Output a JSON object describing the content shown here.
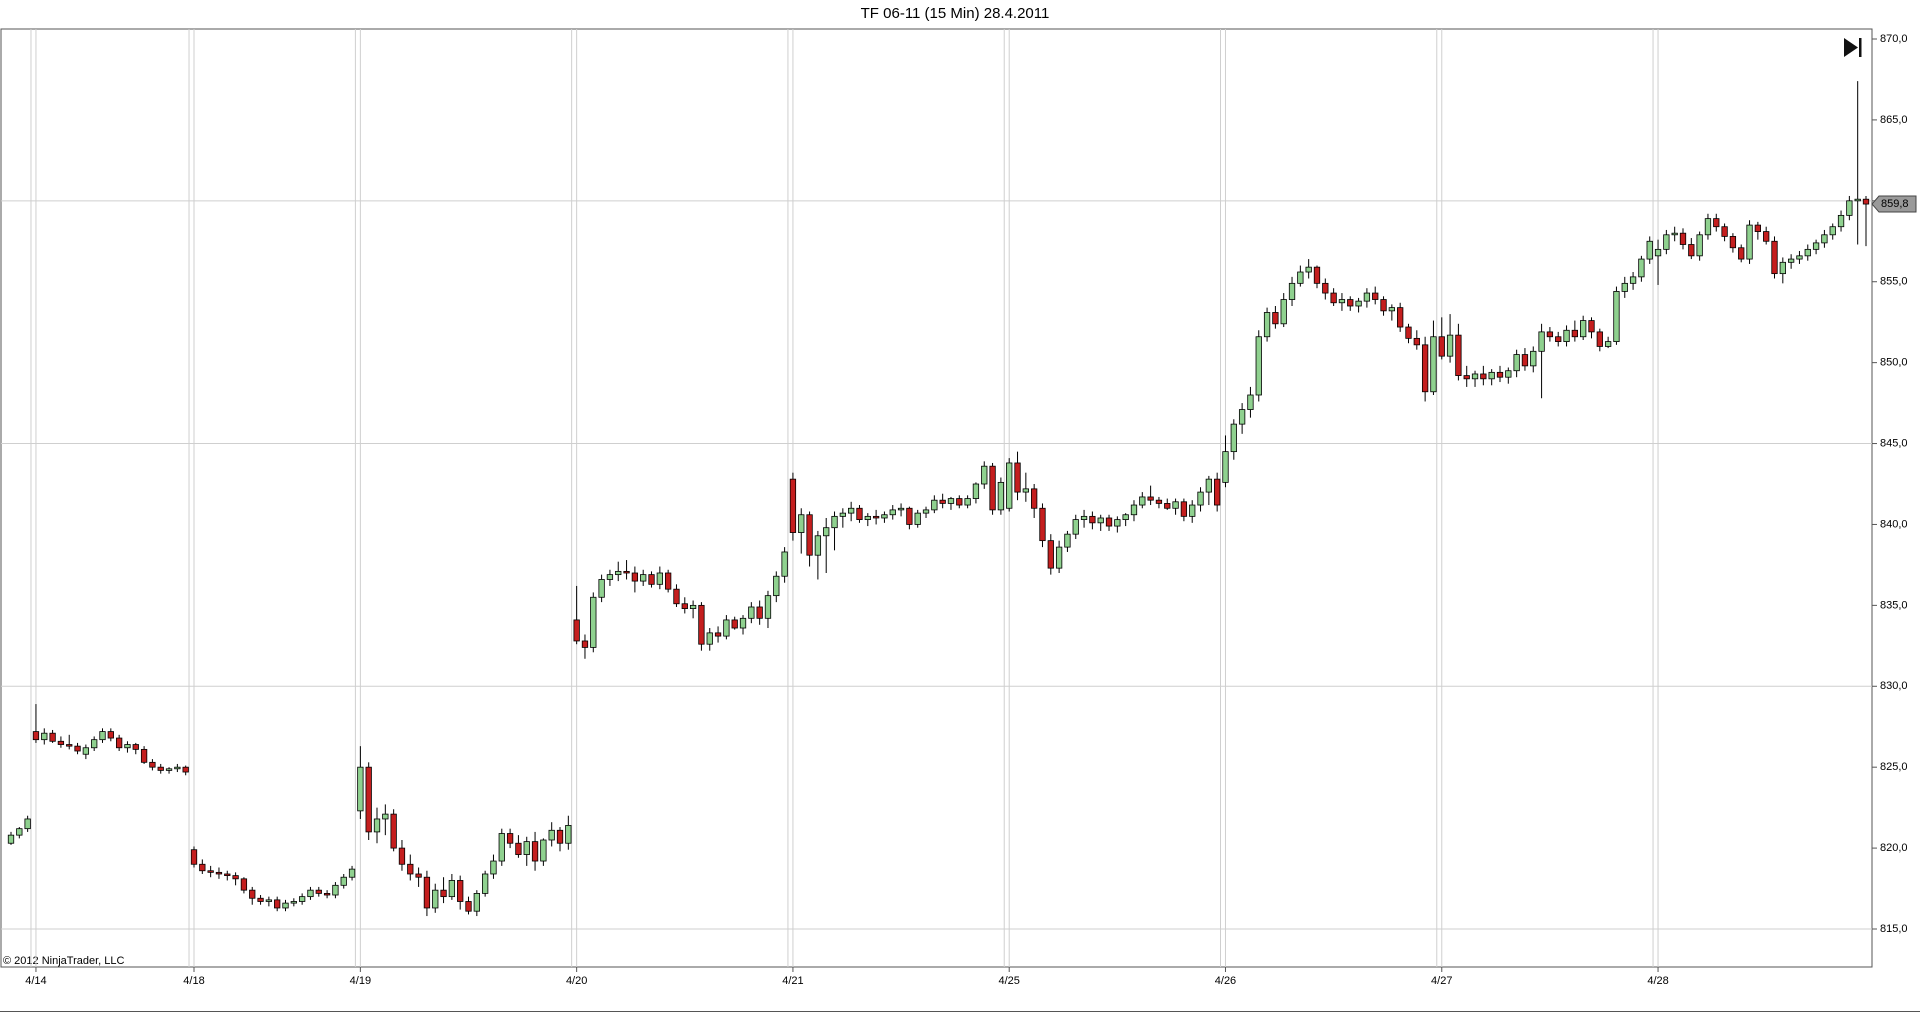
{
  "chart_data": {
    "type": "candlestick",
    "title": "TF 06-11 (15 Min)  28.4.2011",
    "copyright": "© 2012 NinjaTrader, LLC",
    "up_color": "#8fd18f",
    "down_color": "#c41e1e",
    "categories": [
      null,
      null,
      null,
      "4/14",
      null,
      null,
      null,
      null,
      null,
      null,
      null,
      null,
      null,
      null,
      null,
      null,
      null,
      null,
      null,
      null,
      null,
      null,
      "4/18",
      null,
      null,
      null,
      null,
      null,
      null,
      null,
      null,
      null,
      null,
      null,
      null,
      null,
      null,
      null,
      null,
      null,
      null,
      null,
      "4/19",
      null,
      null,
      null,
      null,
      null,
      null,
      null,
      null,
      null,
      null,
      null,
      null,
      null,
      null,
      null,
      null,
      null,
      null,
      null,
      null,
      null,
      null,
      null,
      null,
      null,
      "4/20",
      null,
      null,
      null,
      null,
      null,
      null,
      null,
      null,
      null,
      null,
      null,
      null,
      null,
      null,
      null,
      null,
      null,
      null,
      null,
      null,
      null,
      null,
      null,
      null,
      null,
      "4/21",
      null,
      null,
      null,
      null,
      null,
      null,
      null,
      null,
      null,
      null,
      null,
      null,
      null,
      null,
      null,
      null,
      null,
      null,
      null,
      null,
      null,
      null,
      null,
      null,
      null,
      "4/25",
      null,
      null,
      null,
      null,
      null,
      null,
      null,
      null,
      null,
      null,
      null,
      null,
      null,
      null,
      null,
      null,
      null,
      null,
      null,
      null,
      null,
      null,
      null,
      null,
      null,
      "4/26",
      null,
      null,
      null,
      null,
      null,
      null,
      null,
      null,
      null,
      null,
      null,
      null,
      null,
      null,
      null,
      null,
      null,
      null,
      null,
      null,
      null,
      null,
      null,
      null,
      null,
      "4/27",
      null,
      null,
      null,
      null,
      null,
      null,
      null,
      null,
      null,
      null,
      null,
      null,
      null,
      null,
      null,
      null,
      null,
      null,
      null,
      null,
      null,
      null,
      null,
      null,
      null,
      "4/28",
      null,
      null,
      null,
      null,
      null,
      null,
      null,
      null,
      null,
      null,
      null,
      null,
      null,
      null,
      null,
      null,
      null,
      null,
      null,
      null,
      null,
      null,
      null,
      null,
      null
    ],
    "open": [
      820.3,
      820.8,
      821.2,
      827.2,
      826.7,
      827.1,
      826.6,
      826.4,
      826.3,
      825.8,
      826.2,
      826.7,
      827.2,
      826.8,
      826.2,
      826.4,
      826.1,
      825.3,
      825.0,
      824.8,
      824.9,
      825.0,
      819.9,
      819.0,
      818.6,
      818.5,
      818.4,
      818.3,
      818.1,
      817.4,
      816.9,
      816.7,
      816.8,
      816.3,
      816.6,
      816.7,
      817.0,
      817.4,
      817.2,
      817.1,
      817.7,
      818.2,
      822.3,
      825.0,
      821.0,
      821.8,
      822.1,
      820.0,
      819.0,
      818.4,
      818.2,
      816.3,
      817.4,
      817.0,
      818.0,
      816.7,
      816.1,
      817.2,
      818.4,
      819.2,
      820.9,
      820.3,
      819.6,
      820.4,
      819.2,
      820.5,
      821.1,
      820.3,
      834.1,
      832.8,
      832.4,
      835.5,
      836.6,
      836.9,
      837.1,
      837.0,
      836.5,
      836.9,
      836.3,
      837.0,
      836.0,
      835.1,
      834.8,
      835.0,
      832.6,
      833.3,
      833.1,
      834.1,
      833.6,
      834.2,
      834.9,
      834.2,
      835.6,
      836.8,
      842.8,
      839.5,
      840.6,
      838.1,
      839.3,
      839.8,
      840.5,
      840.7,
      841.0,
      840.3,
      840.5,
      840.4,
      840.6,
      840.9,
      841.0,
      840.0,
      840.7,
      840.9,
      841.5,
      841.3,
      841.6,
      841.2,
      841.6,
      842.5,
      843.6,
      840.9,
      841.0,
      843.8,
      842.0,
      842.2,
      841.0,
      839.0,
      837.3,
      838.6,
      839.4,
      840.3,
      840.5,
      840.1,
      840.4,
      839.9,
      840.3,
      840.6,
      841.2,
      841.7,
      841.5,
      841.3,
      841.0,
      841.4,
      840.5,
      841.2,
      842.0,
      842.8,
      842.6,
      844.5,
      846.2,
      847.1,
      848.0,
      851.6,
      853.1,
      852.4,
      853.9,
      854.9,
      855.6,
      855.9,
      854.9,
      854.3,
      853.7,
      853.9,
      853.5,
      853.8,
      854.3,
      853.9,
      853.2,
      853.4,
      852.2,
      851.5,
      851.1,
      848.2,
      851.6,
      850.4,
      851.7,
      849.2,
      849.0,
      849.3,
      849.0,
      849.4,
      849.1,
      849.5,
      850.5,
      849.8,
      850.7,
      851.9,
      851.6,
      851.3,
      852.0,
      851.6,
      852.6,
      851.9,
      851.0,
      851.3,
      854.4,
      854.9,
      855.3,
      856.4,
      856.6,
      857.0,
      857.9,
      858.0,
      857.3,
      856.6,
      857.9,
      858.9,
      858.4,
      857.8,
      857.1,
      856.4,
      858.5,
      858.1,
      857.5,
      855.5,
      856.2,
      856.4,
      856.6,
      857.0,
      857.4,
      857.9,
      858.4,
      859.1,
      860.0,
      860.1
    ],
    "high": [
      821.0,
      821.3,
      822.0,
      828.9,
      827.4,
      827.3,
      826.9,
      827.0,
      826.5,
      826.4,
      826.9,
      827.4,
      827.4,
      827.0,
      826.6,
      826.5,
      826.3,
      825.5,
      825.2,
      825.0,
      825.2,
      825.1,
      820.1,
      819.3,
      818.9,
      818.8,
      818.6,
      818.5,
      818.2,
      817.6,
      817.1,
      817.0,
      817.0,
      816.8,
      816.9,
      817.2,
      817.6,
      817.6,
      817.4,
      817.9,
      818.4,
      818.9,
      826.3,
      825.3,
      822.5,
      822.7,
      822.4,
      820.5,
      819.6,
      818.8,
      818.6,
      817.8,
      818.2,
      818.4,
      818.3,
      817.0,
      817.4,
      818.6,
      819.6,
      821.2,
      821.2,
      820.8,
      820.7,
      821.0,
      820.6,
      821.6,
      821.3,
      822.0,
      836.2,
      833.2,
      835.8,
      836.9,
      837.2,
      837.7,
      837.8,
      837.4,
      837.2,
      837.1,
      837.4,
      837.2,
      836.3,
      835.5,
      835.3,
      835.2,
      833.6,
      833.7,
      834.4,
      834.3,
      834.4,
      835.2,
      835.3,
      835.9,
      837.1,
      838.6,
      843.2,
      841.0,
      840.8,
      839.6,
      840.4,
      840.8,
      841.0,
      841.4,
      841.2,
      840.7,
      840.9,
      840.8,
      841.2,
      841.3,
      841.1,
      840.9,
      841.1,
      841.8,
      841.9,
      841.7,
      841.8,
      841.8,
      842.6,
      843.9,
      843.8,
      842.9,
      844.1,
      844.5,
      843.2,
      842.5,
      841.3,
      839.4,
      839.0,
      839.6,
      840.6,
      840.9,
      840.8,
      840.6,
      840.6,
      840.5,
      840.7,
      841.5,
      842.0,
      842.4,
      841.7,
      841.6,
      841.6,
      841.6,
      841.5,
      842.3,
      843.0,
      843.2,
      845.5,
      846.5,
      847.5,
      848.5,
      852.0,
      853.4,
      853.5,
      854.3,
      855.3,
      856.0,
      856.4,
      856.0,
      855.2,
      854.6,
      854.3,
      854.1,
      854.0,
      854.6,
      854.7,
      854.1,
      853.6,
      853.7,
      852.4,
      852.0,
      851.6,
      852.6,
      852.8,
      853.0,
      852.4,
      849.8,
      849.5,
      849.8,
      849.6,
      849.8,
      849.7,
      850.8,
      850.9,
      851.0,
      852.4,
      852.2,
      851.9,
      852.3,
      852.6,
      852.9,
      852.8,
      852.1,
      851.6,
      854.7,
      855.3,
      855.6,
      856.6,
      857.8,
      857.6,
      858.2,
      858.4,
      858.3,
      857.7,
      858.1,
      859.2,
      859.2,
      858.6,
      858.0,
      857.3,
      858.8,
      858.7,
      858.4,
      857.8,
      856.5,
      856.7,
      856.9,
      857.3,
      857.6,
      858.2,
      858.6,
      859.4,
      860.3,
      867.4,
      860.3
    ],
    "low": [
      820.2,
      820.6,
      821.0,
      826.5,
      826.4,
      826.5,
      826.2,
      826.1,
      825.8,
      825.5,
      826.0,
      826.5,
      826.6,
      826.0,
      825.9,
      825.8,
      825.2,
      824.8,
      824.6,
      824.6,
      824.7,
      824.5,
      818.8,
      818.4,
      818.2,
      818.1,
      818.0,
      817.7,
      817.2,
      816.5,
      816.5,
      816.4,
      816.1,
      816.1,
      816.4,
      816.5,
      816.8,
      817.0,
      816.9,
      816.9,
      817.5,
      818.0,
      821.8,
      820.5,
      820.3,
      820.8,
      819.8,
      818.6,
      818.0,
      817.6,
      815.8,
      816.0,
      816.6,
      816.8,
      816.2,
      815.9,
      815.8,
      817.0,
      818.1,
      818.9,
      820.0,
      819.4,
      818.9,
      818.6,
      818.9,
      820.1,
      819.8,
      819.9,
      832.6,
      831.7,
      832.1,
      835.2,
      836.2,
      836.5,
      836.6,
      835.8,
      836.2,
      836.1,
      836.0,
      835.8,
      834.9,
      834.5,
      834.2,
      832.2,
      832.2,
      832.7,
      832.9,
      833.5,
      833.2,
      833.9,
      833.8,
      833.6,
      835.2,
      836.4,
      839.0,
      838.2,
      837.4,
      836.6,
      837.0,
      838.4,
      839.8,
      840.2,
      840.1,
      839.9,
      840.0,
      840.1,
      840.3,
      840.5,
      839.7,
      839.8,
      840.4,
      840.7,
      841.0,
      840.9,
      841.0,
      841.0,
      841.3,
      842.2,
      840.6,
      840.6,
      840.8,
      841.5,
      841.4,
      840.4,
      838.6,
      836.9,
      837.0,
      838.3,
      839.1,
      839.8,
      839.7,
      839.6,
      839.6,
      839.5,
      839.9,
      840.2,
      841.0,
      841.2,
      841.0,
      840.9,
      840.6,
      840.2,
      840.1,
      840.8,
      841.2,
      840.8,
      842.3,
      844.0,
      845.6,
      846.6,
      847.6,
      851.3,
      852.1,
      852.2,
      853.5,
      854.7,
      855.2,
      854.6,
      853.9,
      853.5,
      853.2,
      853.2,
      853.1,
      853.4,
      853.6,
      852.9,
      852.6,
      851.9,
      851.2,
      850.8,
      847.6,
      848.0,
      850.2,
      850.0,
      848.9,
      848.5,
      848.5,
      848.6,
      848.6,
      848.8,
      848.7,
      849.1,
      849.5,
      849.4,
      847.8,
      851.3,
      851.0,
      851.0,
      851.3,
      851.4,
      851.5,
      850.7,
      850.9,
      851.1,
      854.0,
      854.5,
      855.0,
      856.1,
      854.8,
      856.7,
      857.5,
      857.0,
      856.4,
      856.3,
      857.6,
      858.1,
      857.5,
      856.8,
      856.2,
      856.1,
      857.6,
      857.3,
      855.2,
      854.9,
      855.8,
      856.1,
      856.3,
      856.7,
      857.1,
      857.6,
      858.1,
      858.8,
      857.3,
      857.2
    ],
    "close": [
      820.8,
      821.2,
      821.8,
      826.7,
      827.1,
      826.6,
      826.4,
      826.3,
      826.0,
      826.2,
      826.7,
      827.2,
      826.8,
      826.2,
      826.4,
      826.1,
      825.3,
      825.0,
      824.8,
      824.9,
      825.0,
      824.7,
      819.0,
      818.6,
      818.5,
      818.4,
      818.3,
      818.1,
      817.4,
      816.9,
      816.7,
      816.8,
      816.3,
      816.6,
      816.7,
      817.0,
      817.4,
      817.2,
      817.1,
      817.7,
      818.2,
      818.7,
      825.0,
      821.0,
      821.8,
      822.1,
      820.0,
      819.0,
      818.4,
      818.2,
      816.3,
      817.4,
      817.0,
      818.0,
      816.7,
      816.1,
      817.2,
      818.4,
      819.2,
      820.9,
      820.3,
      819.6,
      820.4,
      819.2,
      820.5,
      821.1,
      820.3,
      821.4,
      832.8,
      832.4,
      835.5,
      836.6,
      836.9,
      837.1,
      837.0,
      836.5,
      836.9,
      836.3,
      837.0,
      836.0,
      835.1,
      834.8,
      835.0,
      832.6,
      833.3,
      833.1,
      834.1,
      833.6,
      834.2,
      834.9,
      834.2,
      835.6,
      836.8,
      838.3,
      839.5,
      840.6,
      838.1,
      839.3,
      839.8,
      840.5,
      840.7,
      841.0,
      840.3,
      840.5,
      840.4,
      840.6,
      840.9,
      841.0,
      840.0,
      840.7,
      840.9,
      841.5,
      841.3,
      841.6,
      841.2,
      841.6,
      842.5,
      843.6,
      840.9,
      842.6,
      843.8,
      842.0,
      842.2,
      841.0,
      839.0,
      837.3,
      838.6,
      839.4,
      840.3,
      840.5,
      840.1,
      840.4,
      839.9,
      840.3,
      840.6,
      841.2,
      841.7,
      841.5,
      841.3,
      841.0,
      841.4,
      840.5,
      841.2,
      842.0,
      842.8,
      841.2,
      844.5,
      846.2,
      847.1,
      848.0,
      851.6,
      853.1,
      852.4,
      853.9,
      854.9,
      855.6,
      855.9,
      854.9,
      854.3,
      853.7,
      853.9,
      853.5,
      853.8,
      854.3,
      853.9,
      853.2,
      853.4,
      852.2,
      851.5,
      851.1,
      848.2,
      851.6,
      850.4,
      851.7,
      849.2,
      849.0,
      849.3,
      849.0,
      849.4,
      849.1,
      849.5,
      850.5,
      849.8,
      850.7,
      851.9,
      851.6,
      851.3,
      852.0,
      851.6,
      852.6,
      851.9,
      851.0,
      851.3,
      854.4,
      854.9,
      855.3,
      856.4,
      857.5,
      857.0,
      857.9,
      858.0,
      857.3,
      856.6,
      857.9,
      858.9,
      858.4,
      857.8,
      857.1,
      856.4,
      858.5,
      858.1,
      857.5,
      855.5,
      856.2,
      856.4,
      856.6,
      857.0,
      857.4,
      857.9,
      858.4,
      859.1,
      860.0,
      860.1,
      859.8
    ],
    "ylim": [
      815,
      870
    ],
    "yticks": [
      {
        "value": 815,
        "label": "815,0"
      },
      {
        "value": 820,
        "label": "820,0"
      },
      {
        "value": 825,
        "label": "825,0"
      },
      {
        "value": 830,
        "label": "830,0"
      },
      {
        "value": 835,
        "label": "835,0"
      },
      {
        "value": 840,
        "label": "840,0"
      },
      {
        "value": 845,
        "label": "845,0"
      },
      {
        "value": 850,
        "label": "850,0"
      },
      {
        "value": 855,
        "label": "855,0"
      },
      {
        "value": 860,
        "label": "860,0"
      },
      {
        "value": 865,
        "label": "865,0"
      },
      {
        "value": 870,
        "label": "870,0"
      }
    ],
    "ygrid": [
      815,
      830,
      845,
      860
    ],
    "last_price": {
      "value": 859.8,
      "label": "859,8"
    }
  }
}
